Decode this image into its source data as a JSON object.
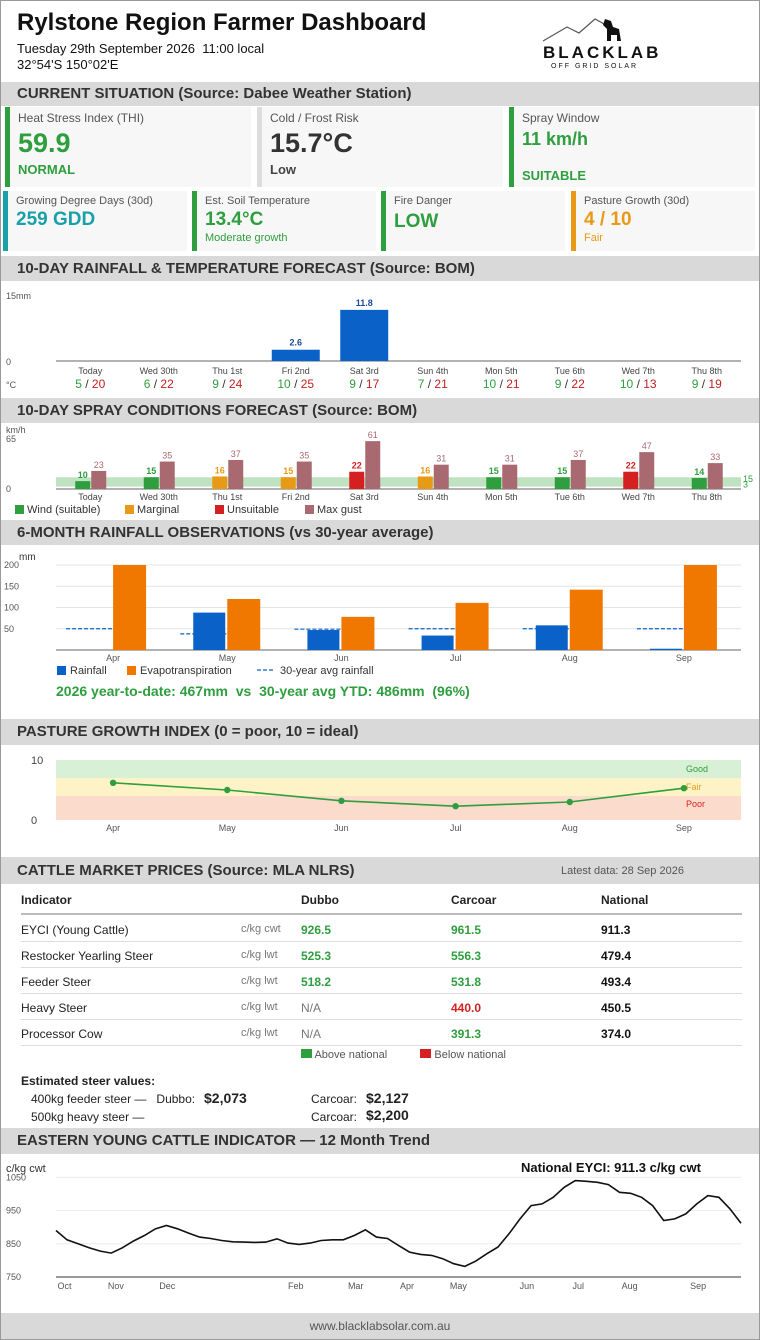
{
  "header": {
    "title": "Rylstone Region Farmer Dashboard",
    "datetime": "Tuesday 29th September 2026  11:00 local",
    "coords": "32°54'S 150°02'E",
    "logo_text": "BLACKLAB",
    "logo_sub": "OFF GRID SOLAR"
  },
  "current": {
    "heading": "CURRENT SITUATION  (Source: Dabee Weather Station)",
    "thi": {
      "label": "Heat Stress Index (THI)",
      "value": "59.9",
      "status": "NORMAL",
      "color": "#2e9e3e"
    },
    "frost": {
      "label": "Cold / Frost Risk",
      "value": "15.7°C",
      "status": "Low",
      "color": "#444444"
    },
    "spray": {
      "label": "Spray Window",
      "value": "11 km/h",
      "status": "SUITABLE",
      "color": "#2e9e3e"
    },
    "gdd": {
      "label": "Growing Degree Days (30d)",
      "value": "259 GDD",
      "color": "#1aa0a8"
    },
    "soil": {
      "label": "Est. Soil Temperature",
      "value": "13.4°C",
      "status": "Moderate growth",
      "color": "#2e9e3e"
    },
    "fire": {
      "label": "Fire Danger",
      "value": "LOW",
      "color": "#2e9e3e"
    },
    "pasture": {
      "label": "Pasture Growth (30d)",
      "value": "4 / 10",
      "status": "Fair",
      "color": "#e89a16"
    }
  },
  "rain_forecast": {
    "heading": "10-DAY RAINFALL & TEMPERATURE FORECAST  (Source: BOM)",
    "y_top_label": "15mm",
    "y_zero_label": "0",
    "unit_label": "°C",
    "chart_data": {
      "type": "bar",
      "categories": [
        "Today",
        "Wed 30th",
        "Thu 1st",
        "Fri 2nd",
        "Sat 3rd",
        "Sun 4th",
        "Mon 5th",
        "Tue 6th",
        "Wed 7th",
        "Thu 8th"
      ],
      "values": [
        0,
        0,
        0,
        2.6,
        11.8,
        0,
        0,
        0,
        0,
        0
      ],
      "value_labels": [
        "",
        "",
        "",
        "2.6",
        "11.8",
        "",
        "",
        "",
        "",
        ""
      ],
      "min_temps": [
        "5",
        "6",
        "9",
        "10",
        "9",
        "7",
        "10",
        "9",
        "10",
        "9"
      ],
      "max_temps": [
        "20",
        "22",
        "24",
        "25",
        "17",
        "21",
        "21",
        "22",
        "13",
        "19"
      ],
      "ylim": [
        0,
        15
      ],
      "bar_color": "#0a62c9"
    }
  },
  "spray_forecast": {
    "heading": "10-DAY SPRAY CONDITIONS FORECAST  (Source: BOM)",
    "y_unit": "km/h",
    "y_top_label": "65",
    "y_zero_label": "0",
    "band_labels": [
      "15",
      "3"
    ],
    "legend": [
      {
        "label": "Wind (suitable)",
        "color": "#2e9e3e"
      },
      {
        "label": "Marginal",
        "color": "#e89a16"
      },
      {
        "label": "Unsuitable",
        "color": "#d42020"
      },
      {
        "label": "Max gust",
        "color": "#a86a70"
      }
    ],
    "chart_data": {
      "type": "bar",
      "categories": [
        "Today",
        "Wed 30th",
        "Thu 1st",
        "Fri 2nd",
        "Sat 3rd",
        "Sun 4th",
        "Mon 5th",
        "Tue 6th",
        "Wed 7th",
        "Thu 8th"
      ],
      "series": [
        {
          "name": "Wind",
          "values": [
            10,
            15,
            16,
            15,
            22,
            16,
            15,
            15,
            22,
            14
          ],
          "labels": [
            "10",
            "15",
            "16",
            "15",
            "22",
            "16",
            "15",
            "15",
            "22",
            "14"
          ],
          "status": [
            "suitable",
            "suitable",
            "marginal",
            "marginal",
            "unsuitable",
            "marginal",
            "suitable",
            "suitable",
            "unsuitable",
            "suitable"
          ]
        },
        {
          "name": "Max gust",
          "values": [
            23,
            35,
            37,
            35,
            61,
            31,
            31,
            37,
            47,
            33
          ],
          "labels": [
            "23",
            "35",
            "37",
            "35",
            "61",
            "31",
            "31",
            "37",
            "47",
            "33"
          ]
        }
      ],
      "ylim": [
        0,
        65
      ],
      "suitable_band": [
        3,
        15
      ]
    }
  },
  "rain_obs": {
    "heading": "6-MONTH RAINFALL OBSERVATIONS  (vs 30-year average)",
    "y_unit": "mm",
    "y_ticks": [
      "200",
      "150",
      "100",
      "50"
    ],
    "legend": [
      {
        "label": "Rainfall",
        "color": "#0a62c9"
      },
      {
        "label": "Evapotranspiration",
        "color": "#f07800"
      },
      {
        "label": "30-year avg rainfall",
        "color": "#0a62c9"
      }
    ],
    "summary": "2026 year-to-date: 467mm  vs  30-year avg YTD: 486mm  (96%)",
    "chart_data": {
      "type": "bar",
      "categories": [
        "Apr",
        "May",
        "Jun",
        "Jul",
        "Aug",
        "Sep"
      ],
      "series": [
        {
          "name": "Rainfall",
          "values": [
            0,
            88,
            47,
            34,
            58,
            3
          ]
        },
        {
          "name": "Evapotranspiration",
          "values": [
            200,
            120,
            78,
            111,
            142,
            200
          ]
        },
        {
          "name": "30-year avg rainfall",
          "values": [
            50,
            38,
            49,
            50,
            50,
            50
          ]
        }
      ],
      "ylim": [
        0,
        200
      ]
    }
  },
  "pasture_index": {
    "heading": "PASTURE GROWTH INDEX  (0 = poor, 10 = ideal)",
    "y_top": "10",
    "y_bottom": "0",
    "zones": [
      "Good",
      "Fair",
      "Poor"
    ],
    "chart_data": {
      "type": "line",
      "categories": [
        "Apr",
        "May",
        "Jun",
        "Jul",
        "Aug",
        "Sep"
      ],
      "values": [
        6.2,
        5.0,
        3.2,
        2.3,
        3.0,
        5.3
      ],
      "ylim": [
        0,
        10
      ]
    }
  },
  "market": {
    "heading": "CATTLE MARKET PRICES  (Source: MLA NLRS)",
    "latest": "Latest data: 28 Sep 2026",
    "columns": [
      "Indicator",
      "Dubbo",
      "Carcoar",
      "National"
    ],
    "rows": [
      {
        "name": "EYCI (Young Cattle)",
        "unit": "c/kg cwt",
        "dubbo": "926.5",
        "dubbo_color": "#2e9e3e",
        "carcoar": "961.5",
        "carcoar_color": "#2e9e3e",
        "national": "911.3"
      },
      {
        "name": "Restocker Yearling Steer",
        "unit": "c/kg lwt",
        "dubbo": "525.3",
        "dubbo_color": "#2e9e3e",
        "carcoar": "556.3",
        "carcoar_color": "#2e9e3e",
        "national": "479.4"
      },
      {
        "name": "Feeder Steer",
        "unit": "c/kg lwt",
        "dubbo": "518.2",
        "dubbo_color": "#2e9e3e",
        "carcoar": "531.8",
        "carcoar_color": "#2e9e3e",
        "national": "493.4"
      },
      {
        "name": "Heavy Steer",
        "unit": "c/kg lwt",
        "dubbo": "N/A",
        "dubbo_color": "#777777",
        "carcoar": "440.0",
        "carcoar_color": "#d42020",
        "national": "450.5"
      },
      {
        "name": "Processor Cow",
        "unit": "c/kg lwt",
        "dubbo": "N/A",
        "dubbo_color": "#777777",
        "carcoar": "391.3",
        "carcoar_color": "#2e9e3e",
        "national": "374.0"
      }
    ],
    "legend_above": "Above national",
    "legend_below": "Below national",
    "steer_heading": "Estimated steer values:",
    "feeder_label": "400kg feeder steer —   Dubbo:",
    "feeder_dubbo": "$2,073",
    "feeder_carcoar_label": "Carcoar:",
    "feeder_carcoar": "$2,127",
    "heavy_label": "500kg heavy steer —",
    "heavy_carcoar_label": "Carcoar:",
    "heavy_carcoar": "$2,200"
  },
  "eyci_trend": {
    "heading": "EASTERN YOUNG CATTLE INDICATOR — 12 Month Trend",
    "y_unit": "c/kg cwt",
    "national_label": "National EYCI: 911.3 c/kg cwt",
    "chart_data": {
      "type": "line",
      "y_ticks": [
        "1050",
        "950",
        "850",
        "750"
      ],
      "x_ticks": [
        "Oct",
        "Nov",
        "Dec",
        "Feb",
        "Mar",
        "Apr",
        "May",
        "Jun",
        "Jul",
        "Aug",
        "Sep"
      ],
      "x_tick_index": [
        1,
        7,
        13,
        28,
        35,
        41,
        47,
        55,
        61,
        67,
        75
      ],
      "values": [
        890,
        862,
        850,
        838,
        828,
        822,
        838,
        858,
        875,
        895,
        905,
        895,
        882,
        870,
        866,
        860,
        856,
        855,
        854,
        855,
        865,
        852,
        848,
        852,
        860,
        862,
        862,
        875,
        892,
        870,
        866,
        845,
        825,
        818,
        815,
        805,
        790,
        782,
        798,
        820,
        840,
        880,
        925,
        965,
        970,
        990,
        1020,
        1040,
        1038,
        1035,
        1028,
        1005,
        1002,
        990,
        965,
        920,
        925,
        940,
        970,
        995,
        990,
        955,
        912
      ],
      "ylim": [
        750,
        1060
      ]
    }
  },
  "footer": {
    "url": "www.blacklabsolar.com.au"
  }
}
